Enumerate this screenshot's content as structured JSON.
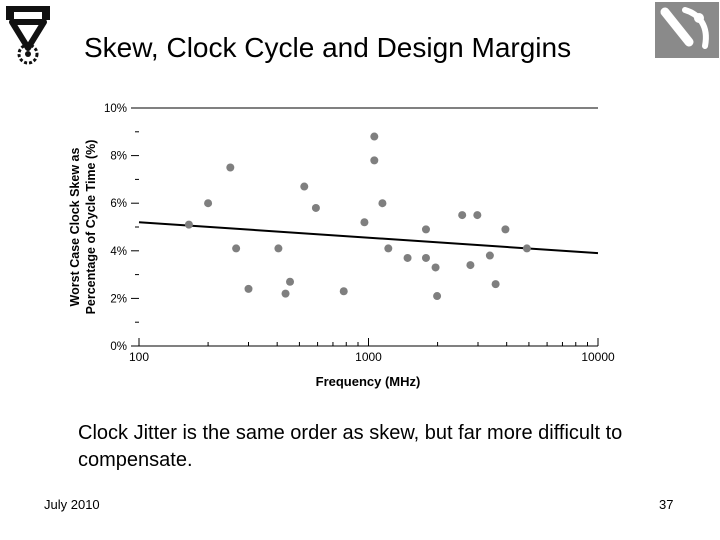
{
  "slide": {
    "title": "Skew, Clock Cycle and Design Margins",
    "body": "Clock Jitter is the same order as skew, but far more difficult to compensate.",
    "footer_date": "July 2010",
    "page_number": "37",
    "logo_left_icon": "technion-logo-icon",
    "logo_right_icon": "university-logo-icon"
  },
  "chart_data": {
    "type": "scatter",
    "xlabel": "Frequency (MHz)",
    "ylabel_line1": "Worst Case Clock Skew as",
    "ylabel_line2": "Percentage of Cycle Time (%)",
    "x_scale": "log",
    "xlim": [
      100,
      10000
    ],
    "ylim": [
      0,
      10
    ],
    "x_ticks": [
      {
        "value": 100,
        "label": "100"
      },
      {
        "value": 1000,
        "label": "1000"
      },
      {
        "value": 10000,
        "label": "10000"
      }
    ],
    "y_ticks": [
      {
        "value": 0,
        "label": "0%"
      },
      {
        "value": 2,
        "label": "2%"
      },
      {
        "value": 4,
        "label": "4%"
      },
      {
        "value": 6,
        "label": "6%"
      },
      {
        "value": 8,
        "label": "8%"
      },
      {
        "value": 10,
        "label": "10%"
      }
    ],
    "grid": false,
    "points": [
      {
        "x": 165,
        "y": 5.1
      },
      {
        "x": 200,
        "y": 6.0
      },
      {
        "x": 250,
        "y": 7.5
      },
      {
        "x": 265,
        "y": 4.1
      },
      {
        "x": 300,
        "y": 2.4
      },
      {
        "x": 405,
        "y": 4.1
      },
      {
        "x": 435,
        "y": 2.2
      },
      {
        "x": 455,
        "y": 2.7
      },
      {
        "x": 525,
        "y": 6.7
      },
      {
        "x": 590,
        "y": 5.8
      },
      {
        "x": 780,
        "y": 2.3
      },
      {
        "x": 960,
        "y": 5.2
      },
      {
        "x": 1060,
        "y": 8.8
      },
      {
        "x": 1060,
        "y": 7.8
      },
      {
        "x": 1150,
        "y": 6.0
      },
      {
        "x": 1220,
        "y": 4.1
      },
      {
        "x": 1480,
        "y": 3.7
      },
      {
        "x": 1780,
        "y": 4.9
      },
      {
        "x": 1780,
        "y": 3.7
      },
      {
        "x": 1960,
        "y": 3.3
      },
      {
        "x": 1990,
        "y": 2.1
      },
      {
        "x": 2560,
        "y": 5.5
      },
      {
        "x": 2780,
        "y": 3.4
      },
      {
        "x": 2980,
        "y": 5.5
      },
      {
        "x": 3380,
        "y": 3.8
      },
      {
        "x": 3580,
        "y": 2.6
      },
      {
        "x": 3950,
        "y": 4.9
      },
      {
        "x": 4900,
        "y": 4.1
      }
    ],
    "trend_line": [
      {
        "x": 100,
        "y": 5.2
      },
      {
        "x": 10000,
        "y": 3.9
      }
    ],
    "marker_color": "#7f7f7f",
    "line_color": "#000000"
  }
}
